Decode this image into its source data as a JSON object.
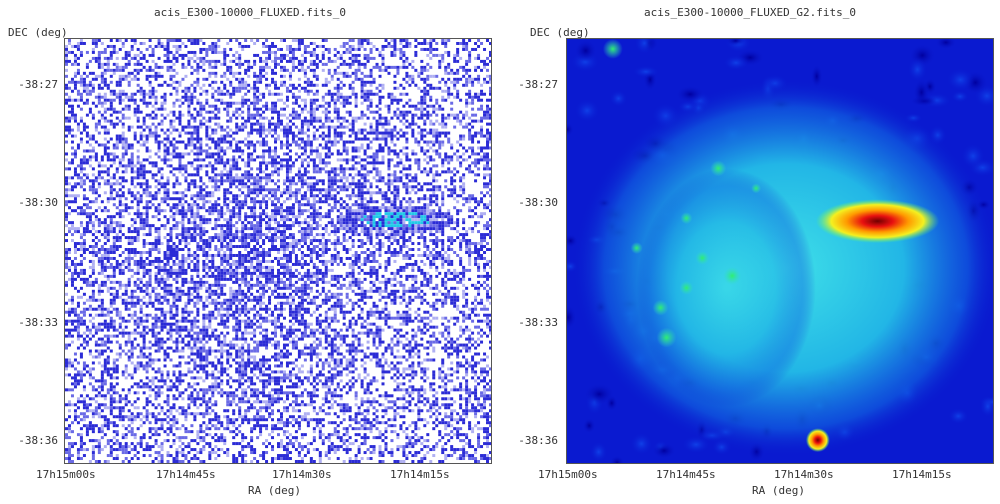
{
  "left": {
    "title": "acis_E300-10000_FLUXED.fits_0",
    "ylabel": "DEC (deg)",
    "xlabel": "RA (deg)",
    "yticks": [
      "-38:27",
      "-38:30",
      "-38:33",
      "-38:36"
    ],
    "xticks": [
      "17h15m00s",
      "17h14m45s",
      "17h14m30s",
      "17h14m15s"
    ]
  },
  "right": {
    "title": "acis_E300-10000_FLUXED_G2.fits_0",
    "ylabel": "DEC (deg)",
    "xlabel": "RA (deg)",
    "yticks": [
      "-38:27",
      "-38:30",
      "-38:33",
      "-38:36"
    ],
    "xticks": [
      "17h15m00s",
      "17h14m45s",
      "17h14m30s",
      "17h14m15s"
    ]
  },
  "colors": {
    "raw_pixel": "#2222cc",
    "smooth_background": "#0a1ad0",
    "smooth_diffuse": "#22c8e8",
    "bright_source": "#e81010"
  }
}
